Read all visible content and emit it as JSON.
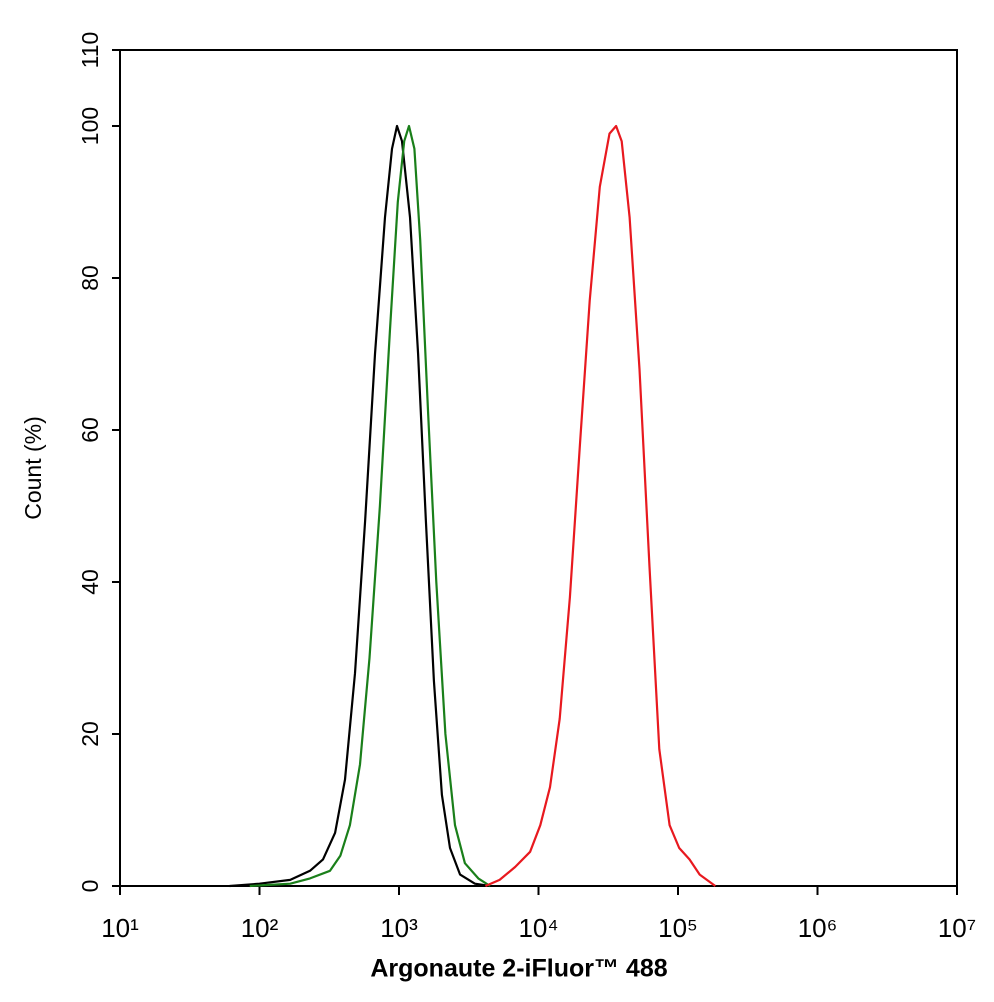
{
  "chart_data": {
    "type": "line",
    "x_label": "Argonaute 2-iFluor™ 488",
    "y_label": "Count  (%)",
    "x_log": true,
    "xlim": [
      10,
      10000000
    ],
    "xticks": [
      {
        "value": 10,
        "label": "10¹"
      },
      {
        "value": 100,
        "label": "10²"
      },
      {
        "value": 1000,
        "label": "10³"
      },
      {
        "value": 10000,
        "label": "10⁴"
      },
      {
        "value": 100000,
        "label": "10⁵"
      },
      {
        "value": 1000000,
        "label": "10⁶"
      },
      {
        "value": 10000000,
        "label": "10⁷"
      }
    ],
    "ylim": [
      0,
      110
    ],
    "yticks": [
      0,
      20,
      40,
      60,
      80,
      100,
      110
    ],
    "series": [
      {
        "color": "#000000",
        "x": [
          61,
          100,
          166,
          230,
          285,
          348,
          410,
          484,
          571,
          673,
          794,
          891,
          968,
          1050,
          1200,
          1370,
          1560,
          1780,
          2030,
          2320,
          2740,
          3500,
          4490
        ],
        "values": [
          0,
          0.3,
          0.8,
          2,
          3.5,
          7,
          14,
          28,
          48,
          70,
          88,
          97,
          100,
          98,
          88,
          70,
          48,
          27,
          12,
          5,
          1.5,
          0.3,
          0
        ]
      },
      {
        "color": "#1a7f1a",
        "x": [
          85,
          166,
          230,
          320,
          380,
          445,
          525,
          615,
          730,
          860,
          980,
          1090,
          1180,
          1290,
          1420,
          1620,
          1850,
          2150,
          2520,
          2970,
          3700,
          4500
        ],
        "values": [
          0,
          0.3,
          1,
          2,
          4,
          8,
          16,
          30,
          50,
          73,
          90,
          98,
          100,
          97,
          85,
          62,
          40,
          20,
          8,
          3,
          1,
          0
        ]
      },
      {
        "color": "#e8191f",
        "x": [
          4160,
          5260,
          6800,
          8700,
          10300,
          12100,
          14200,
          16800,
          19800,
          23300,
          27500,
          32300,
          36000,
          39500,
          45000,
          53000,
          62500,
          73500,
          87000,
          102000,
          121000,
          143000,
          185000
        ],
        "values": [
          0,
          0.8,
          2.5,
          4.5,
          8,
          13,
          22,
          38,
          58,
          77,
          92,
          99,
          100,
          98,
          88,
          68,
          42,
          18,
          8,
          5,
          3.5,
          1.5,
          0
        ]
      }
    ]
  }
}
